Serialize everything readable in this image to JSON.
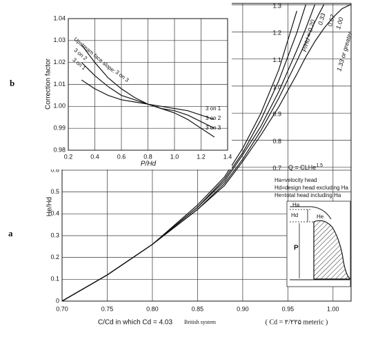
{
  "chart_data": [
    {
      "type": "line",
      "panel_label": "a",
      "y_label": "He/Hd",
      "x_label": "C/Cd in which Cd = 4.03",
      "x_label_note": "British system",
      "metric_note": "( Cd = ۲/۲۲۵ meteric )",
      "x": [
        0.7,
        0.75,
        0.8,
        0.85,
        0.88,
        0.9,
        0.92,
        0.94,
        0.96,
        0.97,
        0.98,
        0.99,
        1.0,
        1.01,
        1.02
      ],
      "series": [
        {
          "name": "P/Hd = 0.20",
          "color": "#111111",
          "values": [
            0,
            0.12,
            0.26,
            0.44,
            0.57,
            0.7,
            0.86,
            1.06,
            1.33,
            null,
            null,
            null,
            null,
            null,
            null
          ]
        },
        {
          "name": "0.33",
          "color": "#111111",
          "values": [
            0,
            0.12,
            0.26,
            0.43,
            0.56,
            0.68,
            0.83,
            1.01,
            1.23,
            1.36,
            null,
            null,
            null,
            null,
            null
          ]
        },
        {
          "name": "0.67",
          "color": "#111111",
          "values": [
            0,
            0.12,
            0.26,
            0.43,
            0.55,
            0.67,
            0.8,
            0.96,
            1.15,
            1.25,
            1.36,
            null,
            null,
            null,
            null
          ]
        },
        {
          "name": "1.00",
          "color": "#111111",
          "values": [
            0,
            0.12,
            0.26,
            0.42,
            0.54,
            0.65,
            0.78,
            0.93,
            1.1,
            1.19,
            1.28,
            1.36,
            null,
            null,
            null
          ]
        },
        {
          "name": "1.33 or greater",
          "color": "#111111",
          "values": [
            0,
            0.12,
            0.26,
            0.42,
            0.53,
            0.64,
            0.76,
            0.89,
            1.04,
            1.12,
            1.19,
            1.25,
            1.3,
            1.34,
            1.36
          ]
        }
      ],
      "xlim": [
        0.7,
        1.02
      ],
      "ylim": [
        0,
        1.364
      ],
      "xticks": [
        {
          "value": 0.7,
          "label": "0.70"
        },
        0.75,
        {
          "value": 0.8,
          "label": "0.80"
        },
        0.85,
        {
          "value": 0.9,
          "label": "0.90"
        },
        0.95,
        {
          "value": 1,
          "label": "1.00"
        }
      ],
      "yticks": [
        0,
        0.1,
        0.2,
        0.3,
        0.4,
        0.5,
        0.6
      ],
      "y2lim": [
        0.206,
        1.305
      ],
      "y2ticks": [
        0.7,
        0.8,
        0.9,
        {
          "value": 1,
          "label": "1.0"
        },
        1.1,
        1.2,
        1.3
      ],
      "grid": true,
      "formula": {
        "text": "Q = CLHe",
        "exponent": "1.5"
      },
      "annotations": [
        "Ha=velocity head",
        "Hd=design head excluding Ha",
        "He=total head including Ha"
      ],
      "sketch_labels": [
        "Ha",
        "Hd",
        "He",
        "P"
      ]
    },
    {
      "type": "line",
      "panel_label": "b",
      "y_label": "Correction factor",
      "x_label": "P/Hd",
      "annotation": "Upstream face slope:",
      "x": [
        0.3,
        0.4,
        0.5,
        0.6,
        0.7,
        0.8,
        0.9,
        1.0,
        1.1,
        1.2,
        1.3
      ],
      "series": [
        {
          "name": "3 on 3",
          "color": "#111111",
          "values": [
            1.028,
            1.02,
            1.013,
            1.008,
            1.004,
            1.001,
            0.999,
            0.997,
            0.994,
            0.99,
            0.986
          ]
        },
        {
          "name": "3 on 2",
          "color": "#111111",
          "values": [
            1.02,
            1.014,
            1.009,
            1.005,
            1.003,
            1.001,
            0.999,
            0.998,
            0.996,
            0.993,
            0.99
          ]
        },
        {
          "name": "3 on 1",
          "color": "#111111",
          "values": [
            1.012,
            1.008,
            1.005,
            1.003,
            1.002,
            1.001,
            1.0,
            0.999,
            0.998,
            0.996,
            0.994
          ]
        }
      ],
      "xlim": [
        0.2,
        1.4
      ],
      "ylim": [
        0.98,
        1.04
      ],
      "xticks": [
        0.2,
        0.4,
        0.6,
        0.8,
        {
          "value": 1,
          "label": "1.0"
        },
        1.2,
        1.4
      ],
      "yticks": [
        0.98,
        0.99,
        {
          "value": 1,
          "label": "1.00"
        },
        1.01,
        1.02,
        1.03,
        1.04
      ],
      "grid": true
    }
  ]
}
